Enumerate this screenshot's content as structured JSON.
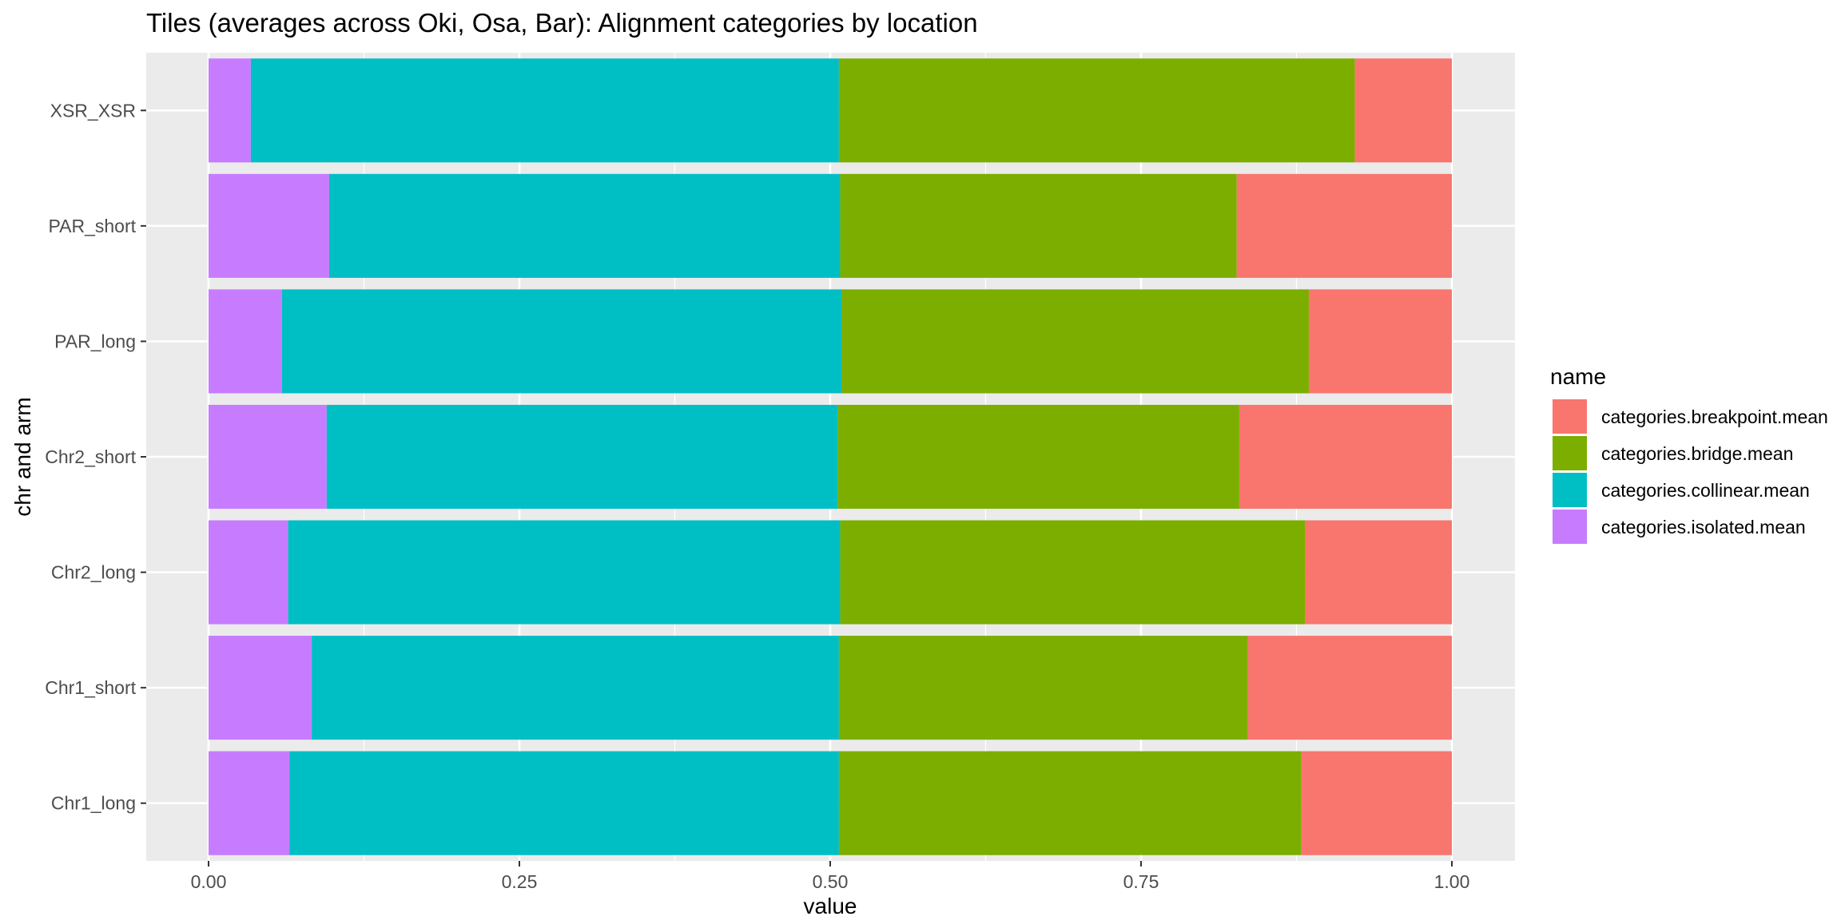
{
  "chart_data": {
    "type": "bar",
    "orientation": "horizontal",
    "stacked": true,
    "title": "Tiles (averages across Oki, Osa, Bar): Alignment categories by location",
    "xlabel": "value",
    "ylabel": "chr and arm",
    "xlim": [
      0,
      1
    ],
    "xticks": [
      "0.00",
      "0.25",
      "0.50",
      "0.75",
      "1.00"
    ],
    "grid": true,
    "legend_position": "right",
    "legend_title": "name",
    "categories": [
      "Chr1_long",
      "Chr1_short",
      "Chr2_long",
      "Chr2_short",
      "PAR_long",
      "PAR_short",
      "XSR_XSR"
    ],
    "series": [
      {
        "name": "categories.isolated.mean",
        "color": "#C77CFF",
        "values": [
          0.065,
          0.083,
          0.064,
          0.095,
          0.059,
          0.097,
          0.034
        ]
      },
      {
        "name": "categories.collinear.mean",
        "color": "#00BFC4",
        "values": [
          0.442,
          0.424,
          0.444,
          0.411,
          0.45,
          0.411,
          0.473
        ]
      },
      {
        "name": "categories.bridge.mean",
        "color": "#7CAE00",
        "values": [
          0.372,
          0.329,
          0.374,
          0.323,
          0.376,
          0.319,
          0.415
        ]
      },
      {
        "name": "categories.breakpoint.mean",
        "color": "#F8766D",
        "values": [
          0.121,
          0.164,
          0.118,
          0.171,
          0.115,
          0.173,
          0.078
        ]
      }
    ],
    "legend_order": [
      "categories.breakpoint.mean",
      "categories.bridge.mean",
      "categories.collinear.mean",
      "categories.isolated.mean"
    ]
  }
}
